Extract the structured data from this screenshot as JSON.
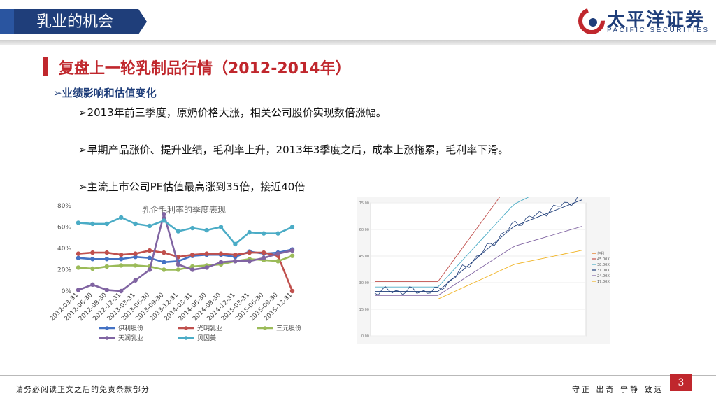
{
  "header": {
    "section_tag": "乳业的机会",
    "logo_cn": "太平洋证券",
    "logo_en": "PACIFIC SECURITIES"
  },
  "slide": {
    "title": "复盘上一轮乳制品行情（2012-2014年）",
    "subtitle": "业绩影响和估值变化",
    "bullets": [
      "2013年前三季度，原奶价格大涨，相关公司股价实现数倍涨幅。",
      "早期产品涨价、提升业绩，毛利率上升，2013年3季度之后，成本上涨拖累，毛利率下滑。",
      "主流上市公司PE估值最高涨到35倍，接近40倍"
    ],
    "bullet_marker": "➢"
  },
  "colors": {
    "accent_red": "#c0272d",
    "brand_blue": "#1f3e7a",
    "series": [
      "#4472c4",
      "#c0504d",
      "#9bbb59",
      "#8064a2",
      "#4bacc6"
    ]
  },
  "chart_data": [
    {
      "type": "line",
      "title": "乳企毛利率的季度表现",
      "categories": [
        "2012-03-31",
        "2012-06-30",
        "2012-09-30",
        "2012-12-31",
        "2013-03-31",
        "2013-06-30",
        "2013-09-30",
        "2013-12-31",
        "2014-03-31",
        "2014-06-30",
        "2014-09-30",
        "2014-12-31",
        "2015-03-31",
        "2015-06-30",
        "2015-09-30",
        "2015-12-31"
      ],
      "yticks": [
        "80%",
        "60%",
        "40%",
        "20%",
        "0%"
      ],
      "ylim": [
        0,
        80
      ],
      "legend_position": "bottom",
      "series": [
        {
          "name": "伊利股份",
          "values": [
            31,
            30,
            30,
            30,
            32,
            31,
            27,
            28,
            33,
            34,
            34,
            32,
            37,
            35,
            36,
            39
          ]
        },
        {
          "name": "光明乳业",
          "values": [
            35,
            36,
            36,
            34,
            35,
            38,
            36,
            32,
            34,
            35,
            35,
            34,
            36,
            36,
            33,
            0
          ]
        },
        {
          "name": "三元股份",
          "values": [
            22,
            21,
            23,
            24,
            24,
            23,
            20,
            20,
            23,
            24,
            25,
            28,
            30,
            29,
            28,
            33
          ]
        },
        {
          "name": "天润乳业",
          "values": [
            1,
            6,
            1,
            0,
            10,
            20,
            72,
            25,
            20,
            22,
            27,
            28,
            28,
            31,
            35,
            38
          ]
        },
        {
          "name": "贝因美",
          "values": [
            64,
            63,
            63,
            69,
            63,
            61,
            66,
            56,
            59,
            57,
            60,
            44,
            55,
            54,
            54,
            60
          ]
        }
      ]
    },
    {
      "type": "line",
      "yticks": [
        "75.00",
        "60.00",
        "45.00",
        "30.00",
        "15.00",
        "0.00"
      ],
      "legend": [
        "伊利",
        "45.00X",
        "38.00X",
        "31.00X",
        "24.00X",
        "17.00X"
      ]
    }
  ],
  "footer": {
    "page_number": "3",
    "disclaimer": "请务必阅读正文之后的免责条款部分",
    "motto": "守正 出奇 宁静 致远"
  }
}
